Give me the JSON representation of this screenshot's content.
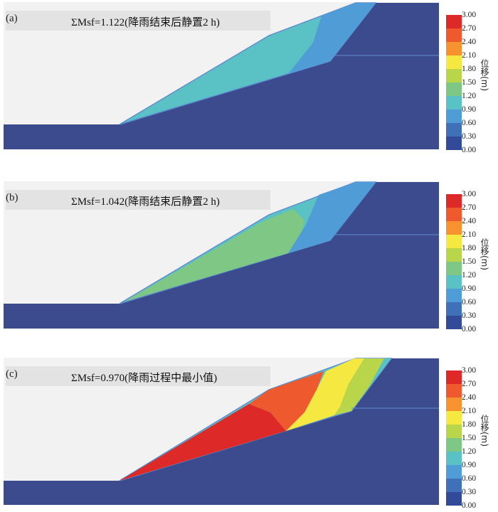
{
  "legend": {
    "unit": "位移(m)",
    "ticks": [
      "3.00",
      "2.70",
      "2.40",
      "2.10",
      "1.80",
      "1.50",
      "1.20",
      "0.90",
      "0.60",
      "0.30",
      "0.00"
    ],
    "colors": [
      "#dd2a28",
      "#ee5a2d",
      "#f6932f",
      "#f5e840",
      "#b9d54a",
      "#7fc785",
      "#5ac2c4",
      "#4f9cd7",
      "#3f70b8",
      "#314b98"
    ]
  },
  "panels": [
    {
      "tag": "(a)",
      "title": "ΣMsf=1.122(降雨结束后静置2 h)"
    },
    {
      "tag": "(b)",
      "title": "ΣMsf=1.042(降雨结束后静置2 h)"
    },
    {
      "tag": "(c)",
      "title": "ΣMsf=0.970(降雨过程中最小值)"
    }
  ],
  "colors": {
    "bedrock": "#3c4a8e",
    "outline": "#5d8fd0",
    "background": "#f2f2f2"
  }
}
